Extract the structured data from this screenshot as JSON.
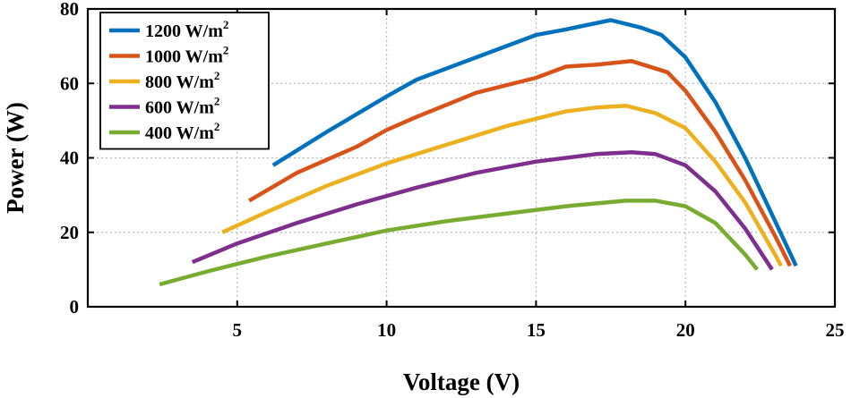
{
  "chart_data": {
    "type": "line",
    "title": "",
    "xlabel": "Voltage (V)",
    "ylabel": "Power (W)",
    "xlim": [
      0,
      25
    ],
    "ylim": [
      0,
      80
    ],
    "xticks": [
      5,
      10,
      15,
      20,
      25
    ],
    "yticks": [
      0,
      20,
      40,
      60,
      80
    ],
    "grid": true,
    "legend_position": "top-left",
    "series": [
      {
        "name": "1200 W/m2",
        "label_main": "1200 W/m",
        "label_sup": "2",
        "color": "#0072BD",
        "x": [
          6.2,
          8,
          10,
          11,
          13,
          15,
          16,
          17.5,
          18.5,
          19.2,
          20,
          21,
          22,
          23,
          23.7
        ],
        "y": [
          38,
          47,
          56.5,
          61,
          67,
          73,
          74.5,
          77,
          75,
          73,
          67,
          55,
          40,
          23,
          11
        ]
      },
      {
        "name": "1000 W/m2",
        "label_main": "1000 W/m",
        "label_sup": "2",
        "color": "#D95319",
        "x": [
          5.4,
          7,
          9,
          10,
          11,
          13,
          15,
          16,
          17,
          18.2,
          19.4,
          20,
          21,
          22,
          23,
          23.5
        ],
        "y": [
          28.5,
          36,
          43,
          47.5,
          51,
          57.5,
          61.5,
          64.5,
          65,
          66,
          63,
          58,
          47,
          34,
          19,
          11
        ]
      },
      {
        "name": "800 W/m2",
        "label_main": "800 W/m",
        "label_sup": "2",
        "color": "#EDB120",
        "x": [
          4.5,
          6,
          8,
          10,
          12,
          14,
          16,
          17,
          18,
          19,
          20,
          21,
          22,
          23,
          23.2
        ],
        "y": [
          20,
          25.5,
          32.5,
          38.5,
          43.5,
          48.5,
          52.5,
          53.5,
          54,
          52,
          48,
          39,
          28,
          14,
          11
        ]
      },
      {
        "name": "600 W/m2",
        "label_main": "600 W/m",
        "label_sup": "2",
        "color": "#7E2F8E",
        "x": [
          3.5,
          5,
          7,
          9,
          11,
          13,
          15,
          17,
          18.2,
          19,
          20,
          21,
          22,
          22.9
        ],
        "y": [
          12,
          17,
          22.5,
          27.5,
          32,
          36,
          39,
          41,
          41.5,
          41,
          38,
          31,
          21,
          10
        ]
      },
      {
        "name": "400 W/m2",
        "label_main": "400 W/m",
        "label_sup": "2",
        "color": "#77AC30",
        "x": [
          2.4,
          4,
          6,
          8,
          10,
          12,
          14,
          16,
          18,
          19,
          20,
          21,
          22,
          22.4
        ],
        "y": [
          6,
          9.5,
          13.5,
          17,
          20.5,
          23,
          25,
          27,
          28.5,
          28.5,
          27,
          22.5,
          14,
          10
        ]
      }
    ]
  }
}
